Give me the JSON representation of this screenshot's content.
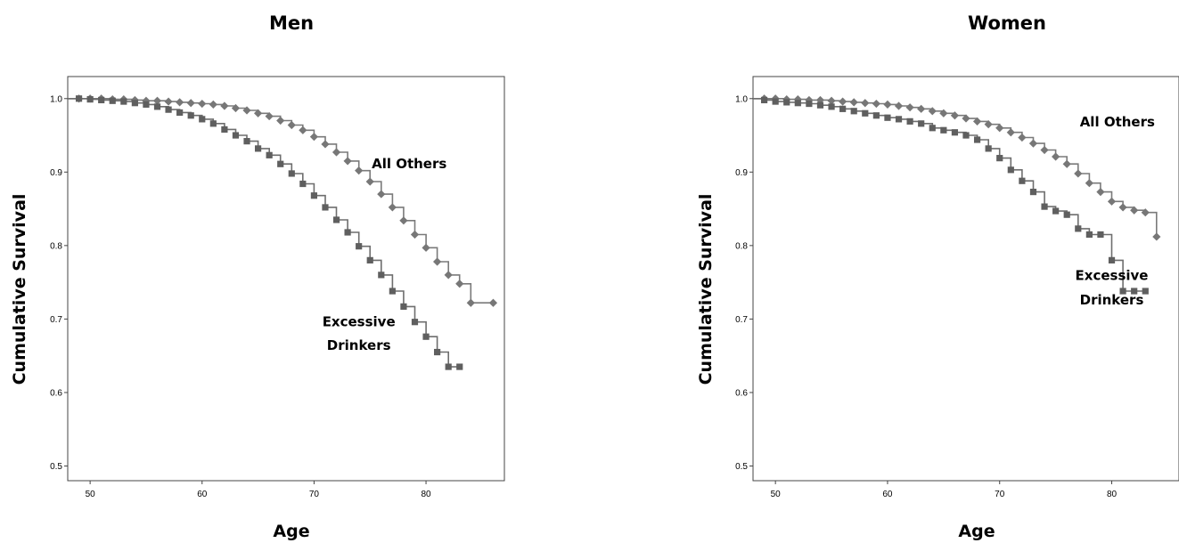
{
  "chart_data": [
    {
      "type": "line",
      "title": "Men",
      "xlabel": "Age",
      "ylabel": "Cumulative Survival",
      "xlim": [
        48,
        87
      ],
      "ylim": [
        0.48,
        1.03
      ],
      "x_ticks": [
        50,
        60,
        70,
        80
      ],
      "y_ticks": [
        0.5,
        0.6,
        0.7,
        0.8,
        0.9,
        1.0
      ],
      "x_tick_labels": [
        "50",
        "60",
        "70",
        "80"
      ],
      "y_tick_labels": [
        "0.5",
        "0.6",
        "0.7",
        "0.8",
        "0.9",
        "1.0"
      ],
      "series": [
        {
          "name": "All Others",
          "marker": "diamond",
          "points": [
            [
              48,
              1.0
            ],
            [
              49,
              1.0
            ],
            [
              50,
              1.0
            ],
            [
              51,
              1.0
            ],
            [
              52,
              0.999
            ],
            [
              53,
              0.999
            ],
            [
              54,
              0.998
            ],
            [
              55,
              0.997
            ],
            [
              56,
              0.997
            ],
            [
              57,
              0.996
            ],
            [
              58,
              0.995
            ],
            [
              59,
              0.994
            ],
            [
              60,
              0.993
            ],
            [
              61,
              0.992
            ],
            [
              62,
              0.99
            ],
            [
              63,
              0.987
            ],
            [
              64,
              0.984
            ],
            [
              65,
              0.98
            ],
            [
              66,
              0.976
            ],
            [
              67,
              0.97
            ],
            [
              68,
              0.964
            ],
            [
              69,
              0.957
            ],
            [
              70,
              0.948
            ],
            [
              71,
              0.938
            ],
            [
              72,
              0.927
            ],
            [
              73,
              0.915
            ],
            [
              74,
              0.902
            ],
            [
              75,
              0.887
            ],
            [
              76,
              0.87
            ],
            [
              77,
              0.852
            ],
            [
              78,
              0.834
            ],
            [
              79,
              0.815
            ],
            [
              80,
              0.797
            ],
            [
              81,
              0.778
            ],
            [
              82,
              0.76
            ],
            [
              83,
              0.748
            ],
            [
              84,
              0.722
            ],
            [
              86,
              0.722
            ]
          ]
        },
        {
          "name": "Excessive Drinkers",
          "marker": "square",
          "points": [
            [
              48,
              1.0
            ],
            [
              49,
              1.0
            ],
            [
              50,
              0.999
            ],
            [
              51,
              0.998
            ],
            [
              52,
              0.997
            ],
            [
              53,
              0.996
            ],
            [
              54,
              0.994
            ],
            [
              55,
              0.992
            ],
            [
              56,
              0.989
            ],
            [
              57,
              0.985
            ],
            [
              58,
              0.981
            ],
            [
              59,
              0.977
            ],
            [
              60,
              0.972
            ],
            [
              61,
              0.966
            ],
            [
              62,
              0.958
            ],
            [
              63,
              0.95
            ],
            [
              64,
              0.942
            ],
            [
              65,
              0.932
            ],
            [
              66,
              0.923
            ],
            [
              67,
              0.911
            ],
            [
              68,
              0.898
            ],
            [
              69,
              0.884
            ],
            [
              70,
              0.868
            ],
            [
              71,
              0.852
            ],
            [
              72,
              0.835
            ],
            [
              73,
              0.818
            ],
            [
              74,
              0.799
            ],
            [
              75,
              0.78
            ],
            [
              76,
              0.76
            ],
            [
              77,
              0.738
            ],
            [
              78,
              0.717
            ],
            [
              79,
              0.696
            ],
            [
              80,
              0.676
            ],
            [
              81,
              0.655
            ],
            [
              82,
              0.635
            ],
            [
              83,
              0.635
            ]
          ]
        }
      ],
      "annotations": [
        {
          "text": "All Others",
          "x": 78.5,
          "y": 0.905
        },
        {
          "text": "Excessive",
          "x": 74,
          "y": 0.69
        },
        {
          "text": "Drinkers",
          "x": 74,
          "y": 0.658
        }
      ],
      "grid": false,
      "legend": "none"
    },
    {
      "type": "line",
      "title": "Women",
      "xlabel": "Age",
      "ylabel": "Cumulative Survival",
      "xlim": [
        48,
        86
      ],
      "ylim": [
        0.48,
        1.03
      ],
      "x_ticks": [
        50,
        60,
        70,
        80
      ],
      "y_ticks": [
        0.5,
        0.6,
        0.7,
        0.8,
        0.9,
        1.0
      ],
      "x_tick_labels": [
        "50",
        "60",
        "70",
        "80"
      ],
      "y_tick_labels": [
        "0.5",
        "0.6",
        "0.7",
        "0.8",
        "0.9",
        "1.0"
      ],
      "series": [
        {
          "name": "All Others",
          "marker": "diamond",
          "points": [
            [
              48,
              1.0
            ],
            [
              49,
              1.0
            ],
            [
              50,
              1.0
            ],
            [
              51,
              0.999
            ],
            [
              52,
              0.999
            ],
            [
              53,
              0.998
            ],
            [
              54,
              0.998
            ],
            [
              55,
              0.997
            ],
            [
              56,
              0.996
            ],
            [
              57,
              0.995
            ],
            [
              58,
              0.994
            ],
            [
              59,
              0.993
            ],
            [
              60,
              0.992
            ],
            [
              61,
              0.99
            ],
            [
              62,
              0.988
            ],
            [
              63,
              0.986
            ],
            [
              64,
              0.983
            ],
            [
              65,
              0.98
            ],
            [
              66,
              0.977
            ],
            [
              67,
              0.973
            ],
            [
              68,
              0.969
            ],
            [
              69,
              0.965
            ],
            [
              70,
              0.96
            ],
            [
              71,
              0.954
            ],
            [
              72,
              0.947
            ],
            [
              73,
              0.939
            ],
            [
              74,
              0.93
            ],
            [
              75,
              0.921
            ],
            [
              76,
              0.911
            ],
            [
              77,
              0.898
            ],
            [
              78,
              0.885
            ],
            [
              79,
              0.873
            ],
            [
              80,
              0.86
            ],
            [
              81,
              0.852
            ],
            [
              82,
              0.848
            ],
            [
              83,
              0.845
            ],
            [
              84,
              0.812
            ]
          ]
        },
        {
          "name": "Excessive Drinkers",
          "marker": "square",
          "points": [
            [
              48,
              1.0
            ],
            [
              49,
              0.998
            ],
            [
              50,
              0.996
            ],
            [
              51,
              0.995
            ],
            [
              52,
              0.994
            ],
            [
              53,
              0.993
            ],
            [
              54,
              0.991
            ],
            [
              55,
              0.989
            ],
            [
              56,
              0.986
            ],
            [
              57,
              0.983
            ],
            [
              58,
              0.98
            ],
            [
              59,
              0.977
            ],
            [
              60,
              0.974
            ],
            [
              61,
              0.972
            ],
            [
              62,
              0.969
            ],
            [
              63,
              0.966
            ],
            [
              64,
              0.96
            ],
            [
              65,
              0.957
            ],
            [
              66,
              0.954
            ],
            [
              67,
              0.95
            ],
            [
              68,
              0.944
            ],
            [
              69,
              0.932
            ],
            [
              70,
              0.919
            ],
            [
              71,
              0.903
            ],
            [
              72,
              0.888
            ],
            [
              73,
              0.873
            ],
            [
              74,
              0.853
            ],
            [
              75,
              0.847
            ],
            [
              76,
              0.842
            ],
            [
              77,
              0.823
            ],
            [
              78,
              0.815
            ],
            [
              79,
              0.815
            ],
            [
              80,
              0.78
            ],
            [
              81,
              0.738
            ],
            [
              82,
              0.738
            ],
            [
              83,
              0.738
            ]
          ]
        }
      ],
      "annotations": [
        {
          "text": "All Others",
          "x": 80.5,
          "y": 0.962
        },
        {
          "text": "Excessive",
          "x": 80,
          "y": 0.753
        },
        {
          "text": "Drinkers",
          "x": 80,
          "y": 0.72
        }
      ],
      "grid": false,
      "legend": "none"
    }
  ],
  "colors": {
    "others_line": "#7a7a7a",
    "others_marker": "#777777",
    "drinkers_line": "#6e6e6e",
    "drinkers_marker": "#5f5f5f",
    "axis": "#444444"
  }
}
